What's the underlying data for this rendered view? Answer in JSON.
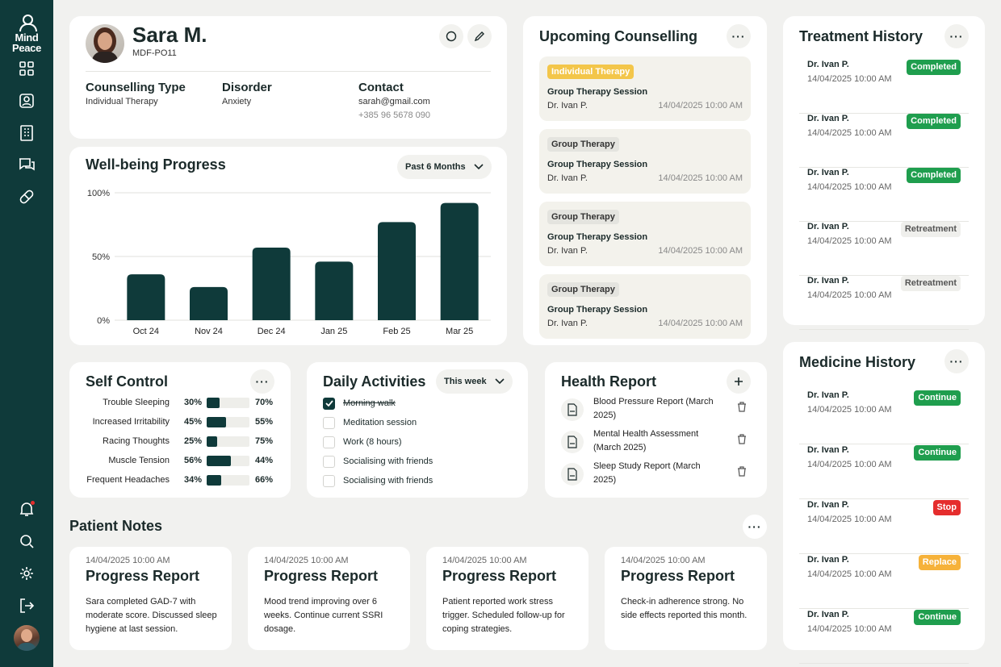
{
  "brand": {
    "line1": "Mind",
    "line2": "Peace"
  },
  "nav": {
    "items": [
      "grid-icon",
      "profile-icon",
      "building-icon",
      "chat-icon",
      "pill-icon"
    ],
    "bottom": [
      "bell-icon",
      "search-icon",
      "gear-icon",
      "logout-icon"
    ]
  },
  "patient": {
    "name": "Sara M.",
    "id": "MDF-PO11",
    "counselling_label": "Counselling Type",
    "counselling_value": "Individual Therapy",
    "disorder_label": "Disorder",
    "disorder_value": "Anxiety",
    "contact_label": "Contact",
    "email": "sarah@gmail.com",
    "phone": "+385 96 5678 090"
  },
  "wellbeing": {
    "title": "Well-being Progress",
    "period": "Past 6 Months"
  },
  "chart_data": {
    "type": "bar",
    "categories": [
      "Oct 24",
      "Nov 24",
      "Dec 24",
      "Jan 25",
      "Feb 25",
      "Mar 25"
    ],
    "values": [
      36,
      26,
      57,
      46,
      77,
      92
    ],
    "ylim": [
      0,
      100
    ],
    "yticks": [
      "100%",
      "50%",
      "0%"
    ],
    "title": "",
    "xlabel": "",
    "ylabel": ""
  },
  "counselling": {
    "title": "Upcoming Counselling",
    "sessions": [
      {
        "tag": "Individual Therapy",
        "title": "Group Therapy Session",
        "doctor": "Dr. Ivan P.",
        "time": "14/04/2025 10:00 AM"
      },
      {
        "tag": "Group Therapy",
        "title": "Group Therapy Session",
        "doctor": "Dr. Ivan P.",
        "time": "14/04/2025 10:00 AM"
      },
      {
        "tag": "Group Therapy",
        "title": "Group Therapy Session",
        "doctor": "Dr. Ivan P.",
        "time": "14/04/2025 10:00 AM"
      },
      {
        "tag": "Group Therapy",
        "title": "Group Therapy Session",
        "doctor": "Dr. Ivan P.",
        "time": "14/04/2025 10:00 AM"
      }
    ]
  },
  "treatment": {
    "title": "Treatment History",
    "rows": [
      {
        "doctor": "Dr. Ivan P.",
        "time": "14/04/2025 10:00 AM",
        "status": "Completed"
      },
      {
        "doctor": "Dr. Ivan P.",
        "time": "14/04/2025 10:00 AM",
        "status": "Completed"
      },
      {
        "doctor": "Dr. Ivan P.",
        "time": "14/04/2025 10:00 AM",
        "status": "Completed"
      },
      {
        "doctor": "Dr. Ivan P.",
        "time": "14/04/2025 10:00 AM",
        "status": "Retreatment"
      },
      {
        "doctor": "Dr. Ivan P.",
        "time": "14/04/2025 10:00 AM",
        "status": "Retreatment"
      }
    ]
  },
  "medicine": {
    "title": "Medicine History",
    "rows": [
      {
        "doctor": "Dr. Ivan P.",
        "time": "14/04/2025 10:00 AM",
        "status": "Continue"
      },
      {
        "doctor": "Dr. Ivan P.",
        "time": "14/04/2025 10:00 AM",
        "status": "Continue"
      },
      {
        "doctor": "Dr. Ivan P.",
        "time": "14/04/2025 10:00 AM",
        "status": "Stop"
      },
      {
        "doctor": "Dr. Ivan P.",
        "time": "14/04/2025 10:00 AM",
        "status": "Replace"
      },
      {
        "doctor": "Dr. Ivan P.",
        "time": "14/04/2025 10:00 AM",
        "status": "Continue"
      }
    ]
  },
  "selfcontrol": {
    "title": "Self Control",
    "rows": [
      {
        "label": "Trouble Sleeping",
        "left": "30%",
        "right": "70%",
        "value": 30
      },
      {
        "label": "Increased Irritability",
        "left": "45%",
        "right": "55%",
        "value": 45
      },
      {
        "label": "Racing Thoughts",
        "left": "25%",
        "right": "75%",
        "value": 25
      },
      {
        "label": "Muscle Tension",
        "left": "56%",
        "right": "44%",
        "value": 56
      },
      {
        "label": "Frequent Headaches",
        "left": "34%",
        "right": "66%",
        "value": 34
      }
    ]
  },
  "daily": {
    "title": "Daily Activities",
    "period": "This week",
    "items": [
      {
        "label": "Morning walk",
        "done": true
      },
      {
        "label": "Meditation session",
        "done": false
      },
      {
        "label": "Work (8 hours)",
        "done": false
      },
      {
        "label": "Socialising with friends",
        "done": false
      },
      {
        "label": "Socialising with friends",
        "done": false
      }
    ]
  },
  "health": {
    "title": "Health Report",
    "reports": [
      "Blood Pressure Report (March 2025)",
      "Mental Health Assessment (March 2025)",
      "Sleep Study Report (March 2025)"
    ]
  },
  "notes": {
    "title": "Patient Notes",
    "items": [
      {
        "date": "14/04/2025 10:00 AM",
        "title": "Progress Report",
        "body": "Sara completed GAD-7 with moderate score. Discussed sleep hygiene at last session."
      },
      {
        "date": "14/04/2025 10:00 AM",
        "title": "Progress Report",
        "body": "Mood trend improving over 6 weeks. Continue current SSRI dosage."
      },
      {
        "date": "14/04/2025 10:00 AM",
        "title": "Progress Report",
        "body": "Patient reported work stress trigger. Scheduled follow-up for coping strategies."
      },
      {
        "date": "14/04/2025 10:00 AM",
        "title": "Progress Report",
        "body": "Check-in adherence strong. No side effects reported this month."
      }
    ]
  },
  "colors": {
    "primary": "#0f3a3a",
    "green": "#1f9e4e",
    "red": "#e52d2d",
    "orange": "#f6b23a",
    "tag_yellow": "#f3c64a"
  }
}
